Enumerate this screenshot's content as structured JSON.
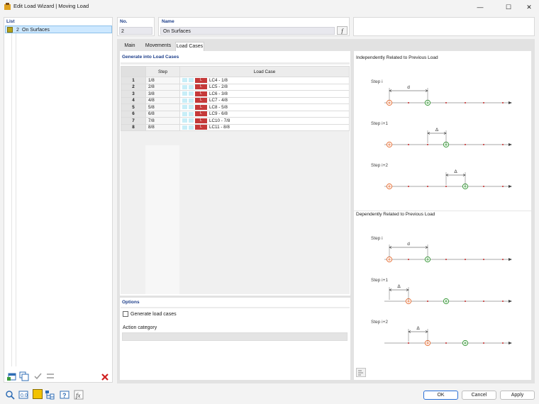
{
  "window": {
    "title": "Edit Load Wizard | Moving Load",
    "minimize": "—",
    "maximize": "☐",
    "close": "✕"
  },
  "list": {
    "header": "List",
    "items": [
      {
        "number": "2",
        "label": "On Surfaces",
        "color": "#b5a21a"
      }
    ]
  },
  "header": {
    "no_label": "No.",
    "no_value": "2",
    "name_label": "Name",
    "name_value": "On Surfaces",
    "fx_label": "f"
  },
  "tabs": [
    {
      "label": "Main",
      "active": false
    },
    {
      "label": "Movements",
      "active": false
    },
    {
      "label": "Load Cases",
      "active": true
    }
  ],
  "load_cases": {
    "section_title": "Generate into Load Cases",
    "col_step": "Step",
    "col_load_case": "Load Case",
    "badge": "L",
    "rows": [
      {
        "n": "1",
        "step": "1/8",
        "lc": "LC4 - 1/8"
      },
      {
        "n": "2",
        "step": "2/8",
        "lc": "LC5 - 2/8"
      },
      {
        "n": "3",
        "step": "3/8",
        "lc": "LC6 - 3/8"
      },
      {
        "n": "4",
        "step": "4/8",
        "lc": "LC7 - 4/8"
      },
      {
        "n": "5",
        "step": "5/8",
        "lc": "LC8 - 5/8"
      },
      {
        "n": "6",
        "step": "6/8",
        "lc": "LC9 - 6/8"
      },
      {
        "n": "7",
        "step": "7/8",
        "lc": "LC10 - 7/8"
      },
      {
        "n": "8",
        "step": "8/8",
        "lc": "LC11 - 8/8"
      }
    ]
  },
  "options": {
    "title": "Options",
    "generate_label": "Generate load cases",
    "generate_checked": false,
    "action_category_label": "Action category",
    "action_category_value": ""
  },
  "diagram": {
    "independent_title": "Independently Related to Previous Load",
    "dependent_title": "Dependently Related to Previous Load",
    "step_labels": [
      "Step i",
      "Step i+1",
      "Step i+2"
    ],
    "d_label": "d",
    "delta_label": "Δ"
  },
  "footer": {
    "ok": "OK",
    "cancel": "Cancel",
    "apply": "Apply"
  },
  "colors": {
    "accent": "#2a6fd6",
    "orange_marker": "#e8733a",
    "green_marker": "#3a9a3a",
    "red_dot": "#c62828",
    "label_blue": "#1d3e8a"
  }
}
